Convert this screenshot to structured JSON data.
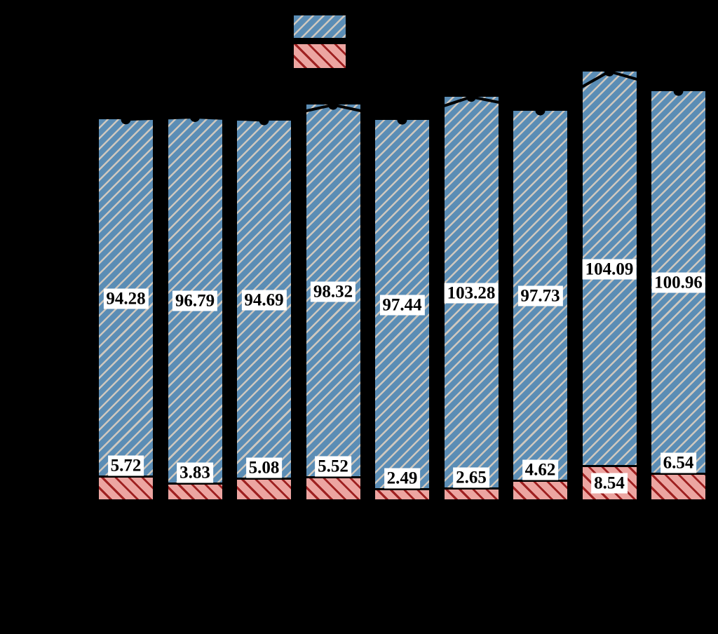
{
  "chart_data": {
    "type": "bar",
    "stacked": true,
    "background": "#000000",
    "axis_text_visible": false,
    "series": [
      {
        "name": "blue_hatched",
        "color": "#5b8db5",
        "hatch": "/",
        "hatch_color": "#cfc8bf",
        "values": [
          94.28,
          96.79,
          94.69,
          98.32,
          97.44,
          103.28,
          97.73,
          104.09,
          100.96
        ]
      },
      {
        "name": "red_hatched",
        "color": "#eca5a1",
        "hatch": "\\",
        "hatch_color": "#9e2020",
        "values": [
          5.72,
          3.83,
          5.08,
          5.52,
          2.49,
          2.65,
          4.62,
          8.54,
          6.54
        ]
      }
    ],
    "totals": [
      100.0,
      100.62,
      99.77,
      103.84,
      99.93,
      105.93,
      102.35,
      112.63,
      107.5
    ],
    "totals_line": {
      "present": true,
      "color": "#000000",
      "marker": "circle"
    },
    "value_labels": {
      "background": "#ffffff",
      "text_color": "#000000"
    },
    "legend": {
      "labels_visible": false,
      "swatches": [
        "blue_hatched",
        "red_hatched"
      ]
    }
  }
}
